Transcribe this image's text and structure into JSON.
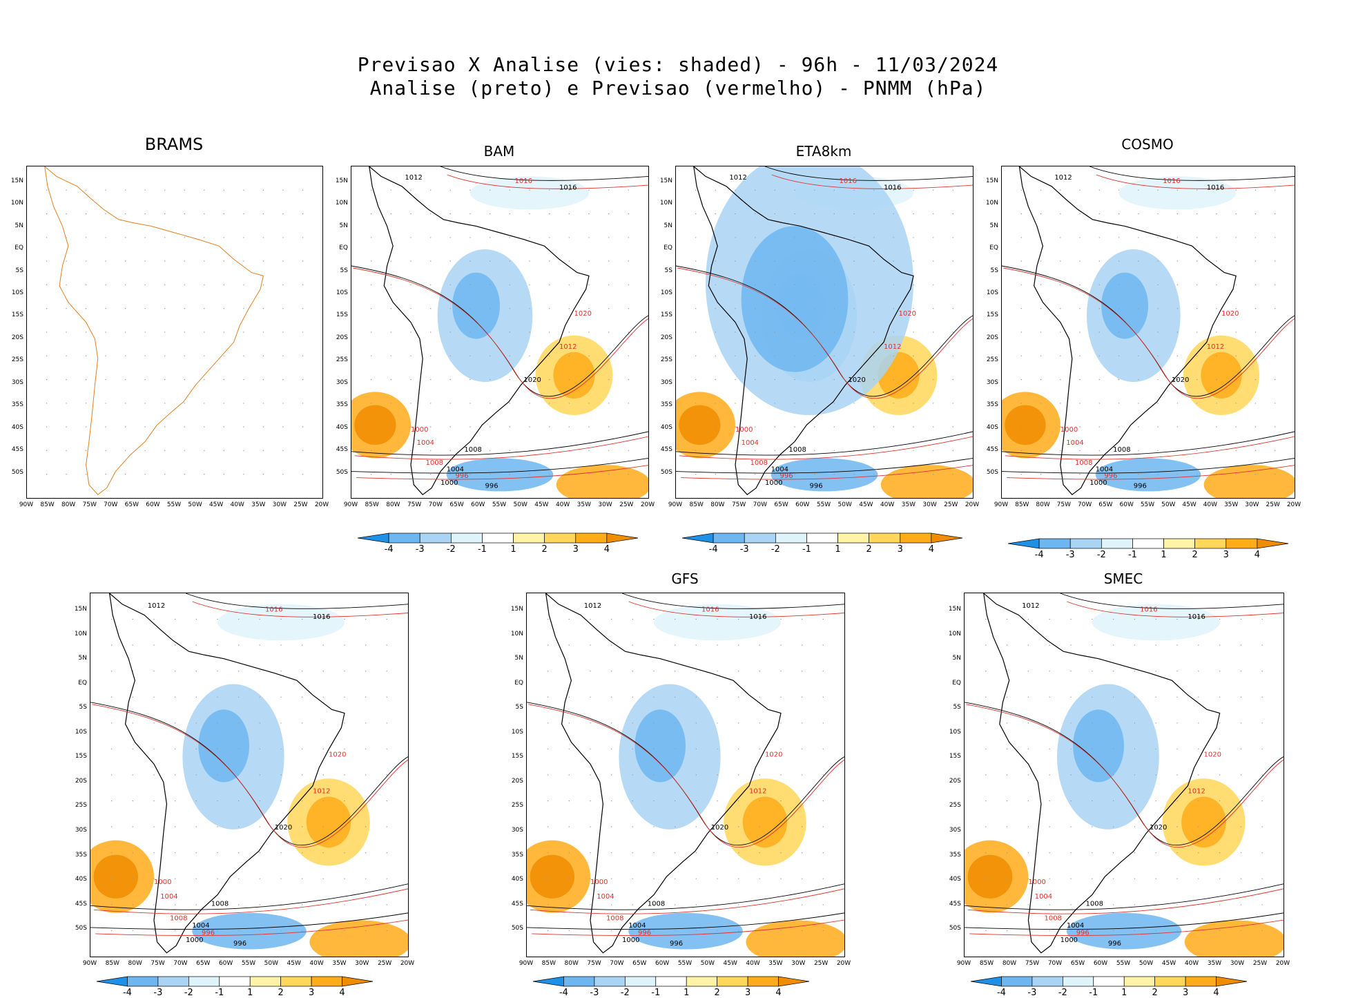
{
  "header": {
    "line1": "Previsao X Analise (vies: shaded) - 96h - 11/03/2024",
    "line2": "Analise (preto) e Previsao (vermelho) - PNMM (hPa)"
  },
  "axes": {
    "lat_labels": [
      "15N",
      "10N",
      "5N",
      "EQ",
      "5S",
      "10S",
      "15S",
      "20S",
      "25S",
      "30S",
      "35S",
      "40S",
      "45S",
      "50S"
    ],
    "lon_labels": [
      "90W",
      "85W",
      "80W",
      "75W",
      "70W",
      "65W",
      "60W",
      "55W",
      "50W",
      "45W",
      "40W",
      "35W",
      "30W",
      "25W",
      "20W"
    ]
  },
  "colorbar": {
    "labels": [
      "-4",
      "-3",
      "-2",
      "-1",
      "1",
      "2",
      "3",
      "4"
    ],
    "colors": [
      "#1e90e6",
      "#6db6f0",
      "#a9d4f4",
      "#dff3fa",
      "#ffffff",
      "#fff3a8",
      "#ffd75a",
      "#ffab1a",
      "#f08c00"
    ]
  },
  "panels": [
    {
      "id": "brams",
      "title": "BRAMS",
      "colorbar": false
    },
    {
      "id": "bam",
      "title": "BAM",
      "colorbar": true
    },
    {
      "id": "eta",
      "title": "ETA8km",
      "colorbar": true
    },
    {
      "id": "cosmo",
      "title": "COSMO",
      "colorbar": true
    },
    {
      "id": "p5",
      "title": "",
      "colorbar": true
    },
    {
      "id": "gfs",
      "title": "GFS",
      "colorbar": true
    },
    {
      "id": "smec",
      "title": "SMEC",
      "colorbar": true
    }
  ],
  "isobar_labels": {
    "analysis": [
      "1012",
      "1016",
      "1020",
      "1008",
      "1004",
      "1000",
      "996"
    ],
    "forecast": [
      "1016",
      "1020",
      "1012",
      "1008",
      "1004",
      "1000",
      "996"
    ]
  },
  "colors": {
    "analysis_line": "#000000",
    "forecast_line": "#e0302a",
    "coast_brams": "#e08020",
    "grid": "#999999"
  }
}
